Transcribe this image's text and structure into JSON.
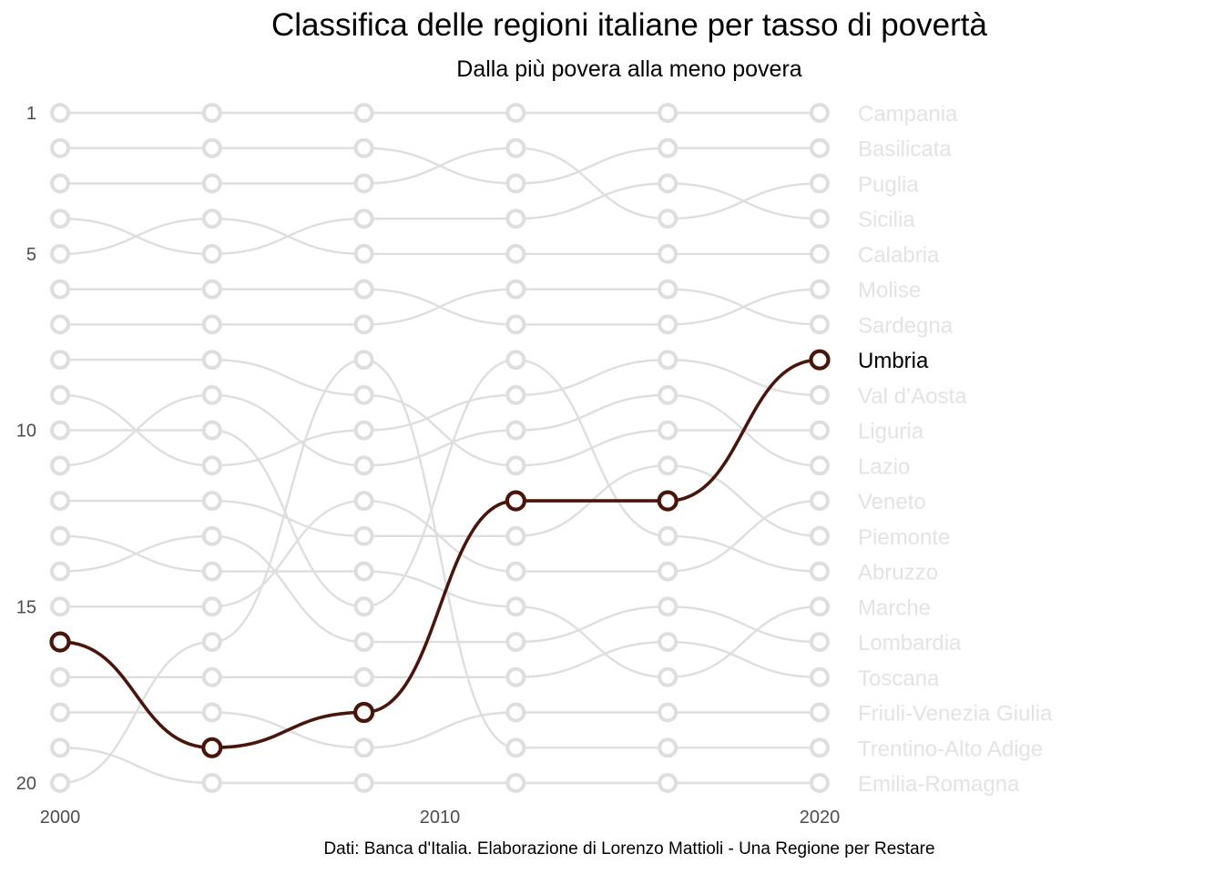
{
  "chart_data": {
    "type": "line",
    "title": "Classifica delle regioni italiane per tasso di povertà",
    "subtitle": "Dalla più povera alla meno povera",
    "caption": "Dati: Banca d'Italia. Elaborazione di Lorenzo Mattioli - Una Regione per Restare",
    "xlabel": "",
    "ylabel": "",
    "x": [
      2000,
      2004,
      2008,
      2012,
      2016,
      2020
    ],
    "x_ticks": [
      2000,
      2010,
      2020
    ],
    "y_ticks": [
      1,
      5,
      10,
      15,
      20
    ],
    "ylim": [
      20,
      1
    ],
    "y_reversed": true,
    "grid": false,
    "highlight": "Umbria",
    "colors": {
      "highlight": "#4a160b",
      "muted": "#dedede",
      "label_muted": "#e3e3e3",
      "label_highlight": "#000000"
    },
    "series": [
      {
        "name": "Campania",
        "values": [
          1,
          1,
          1,
          1,
          1,
          1
        ]
      },
      {
        "name": "Basilicata",
        "values": [
          2,
          2,
          2,
          3,
          2,
          2
        ]
      },
      {
        "name": "Puglia",
        "values": [
          3,
          3,
          3,
          2,
          4,
          3
        ]
      },
      {
        "name": "Sicilia",
        "values": [
          4,
          5,
          4,
          4,
          3,
          4
        ]
      },
      {
        "name": "Calabria",
        "values": [
          5,
          4,
          5,
          5,
          5,
          5
        ]
      },
      {
        "name": "Molise",
        "values": [
          6,
          6,
          6,
          7,
          7,
          6
        ]
      },
      {
        "name": "Sardegna",
        "values": [
          7,
          7,
          7,
          6,
          6,
          7
        ]
      },
      {
        "name": "Umbria",
        "values": [
          16,
          19,
          18,
          12,
          12,
          8
        ]
      },
      {
        "name": "Val d’Aosta",
        "values": [
          9,
          11,
          10,
          9,
          8,
          9
        ]
      },
      {
        "name": "Liguria",
        "values": [
          8,
          8,
          9,
          11,
          10,
          10
        ]
      },
      {
        "name": "Lazio",
        "values": [
          11,
          9,
          11,
          10,
          9,
          11
        ]
      },
      {
        "name": "Veneto",
        "values": [
          15,
          15,
          12,
          14,
          14,
          12
        ]
      },
      {
        "name": "Piemonte",
        "values": [
          12,
          12,
          13,
          13,
          11,
          13
        ]
      },
      {
        "name": "Abruzzo",
        "values": [
          10,
          10,
          15,
          8,
          13,
          14
        ]
      },
      {
        "name": "Marche",
        "values": [
          13,
          14,
          14,
          15,
          17,
          15
        ]
      },
      {
        "name": "Lombardia",
        "values": [
          14,
          13,
          16,
          16,
          15,
          16
        ]
      },
      {
        "name": "Toscana",
        "values": [
          17,
          17,
          17,
          17,
          16,
          17
        ]
      },
      {
        "name": "Friuli-Venezia Giulia",
        "values": [
          18,
          18,
          19,
          18,
          18,
          18
        ]
      },
      {
        "name": "Trentino-Alto Adige",
        "values": [
          20,
          16,
          8,
          19,
          19,
          19
        ]
      },
      {
        "name": "Emilia-Romagna",
        "values": [
          19,
          20,
          20,
          20,
          20,
          20
        ]
      }
    ]
  }
}
